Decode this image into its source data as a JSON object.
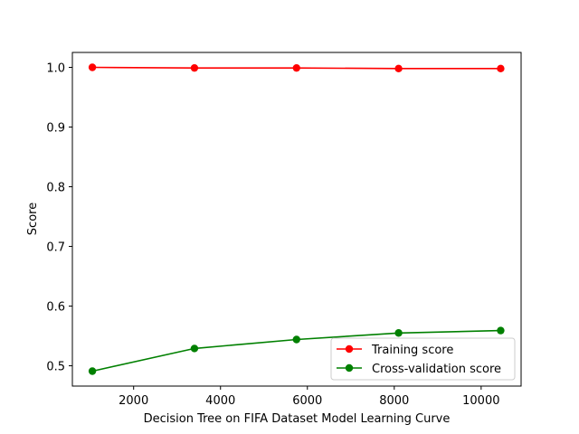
{
  "chart_data": {
    "type": "line",
    "title": "",
    "xlabel": "Decision Tree on FIFA Dataset Model Learning Curve",
    "ylabel": "Score",
    "xlim": [
      590,
      10920
    ],
    "ylim": [
      0.466,
      1.025
    ],
    "xticks": [
      2000,
      4000,
      6000,
      8000,
      10000
    ],
    "yticks": [
      0.5,
      0.6,
      0.7,
      0.8,
      0.9,
      1.0
    ],
    "xtick_labels": [
      "2000",
      "4000",
      "6000",
      "8000",
      "10000"
    ],
    "ytick_labels": [
      "0.5",
      "0.6",
      "0.7",
      "0.8",
      "0.9",
      "1.0"
    ],
    "x": [
      1050,
      3400,
      5750,
      8100,
      10450
    ],
    "series": [
      {
        "name": "Training score",
        "color": "#ff0000",
        "marker": "circle",
        "values": [
          1.0,
          0.999,
          0.999,
          0.998,
          0.998
        ]
      },
      {
        "name": "Cross-validation score",
        "color": "#008000",
        "marker": "circle",
        "values": [
          0.491,
          0.529,
          0.544,
          0.555,
          0.559
        ]
      }
    ],
    "grid": false,
    "legend_position": "lower right"
  }
}
